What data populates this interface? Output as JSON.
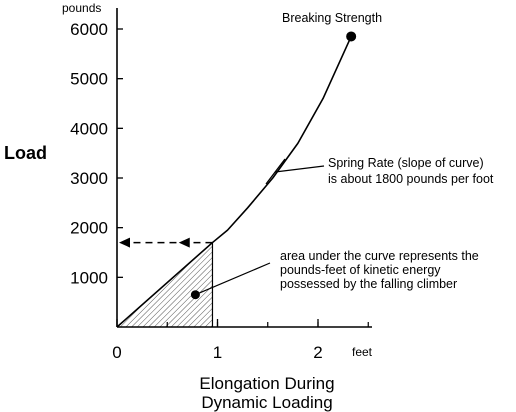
{
  "chart_data": {
    "type": "line",
    "title": "",
    "ylabel": "Load",
    "y_unit": "pounds",
    "x_unit": "feet",
    "xlabel_lines": [
      "Elongation During",
      "Dynamic Loading"
    ],
    "xlim": [
      0,
      2.5
    ],
    "ylim": [
      0,
      6400
    ],
    "x_ticks": [
      0,
      1,
      2
    ],
    "y_ticks": [
      1000,
      2000,
      3000,
      4000,
      5000,
      6000
    ],
    "grid": false,
    "series": [
      {
        "x": [
          0,
          0.95,
          1.1,
          1.3,
          1.55,
          1.8,
          2.05,
          2.33
        ],
        "y": [
          0,
          1700,
          1950,
          2400,
          3000,
          3700,
          4600,
          5850
        ]
      }
    ],
    "breaking_point": {
      "x": 2.33,
      "y": 5850
    },
    "energy_point": {
      "x": 0.78,
      "y": 650
    },
    "shaded_area": {
      "x_end": 0.95,
      "y_end": 1700
    },
    "dashed_arrow": {
      "y": 1700,
      "x_from": 0.95,
      "x_to": 0.0
    },
    "annotations": {
      "breaking_strength": "Breaking Strength",
      "spring_rate": [
        "Spring Rate (slope of curve)",
        "is about 1800  pounds per foot"
      ],
      "area": [
        "area under the curve represents the",
        "pounds-feet of kinetic energy",
        "possessed by the falling climber"
      ]
    }
  }
}
